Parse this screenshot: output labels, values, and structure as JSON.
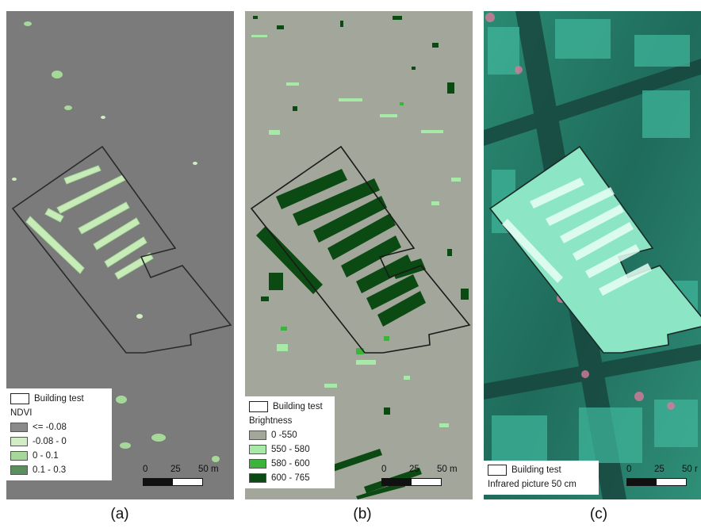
{
  "panels": [
    {
      "caption": "(a)",
      "legend": {
        "building_label": "Building test",
        "title": "NDVI",
        "classes": [
          {
            "label": "<= -0.08",
            "color": "#8a8a8a"
          },
          {
            "label": "-0.08 - 0",
            "color": "#d2ecc4"
          },
          {
            "label": "0 - 0.1",
            "color": "#a6d89a"
          },
          {
            "label": "0.1 - 0.3",
            "color": "#5b8f5d"
          }
        ]
      },
      "scale": {
        "ticks": [
          "0",
          "25",
          "50 m"
        ]
      }
    },
    {
      "caption": "(b)",
      "legend": {
        "building_label": "Building test",
        "title": "Brightness",
        "classes": [
          {
            "label": "0 -550",
            "color": "#a3a69a"
          },
          {
            "label": "550 - 580",
            "color": "#a7e9a7"
          },
          {
            "label": "580 - 600",
            "color": "#3cb43c"
          },
          {
            "label": "600 - 765",
            "color": "#0b4a12"
          }
        ]
      },
      "scale": {
        "ticks": [
          "0",
          "25",
          "50 m"
        ]
      }
    },
    {
      "caption": "(c)",
      "legend": {
        "building_label": "Building test",
        "subtitle": "Infrared picture 50 cm"
      },
      "scale": {
        "ticks": [
          "0",
          "25",
          "50 r"
        ]
      }
    }
  ],
  "colors": {
    "ndvi_background": "#7b7b7b",
    "brightness_background": "#a3a69a",
    "infrared_base": "#1e6b5c"
  }
}
